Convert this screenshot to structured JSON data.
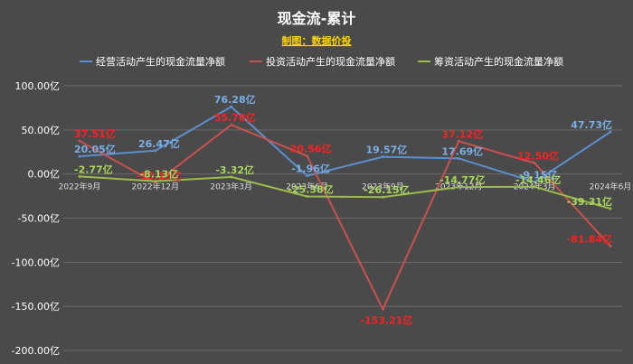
{
  "chart_data": {
    "type": "line",
    "title": "现金流-累计",
    "subtitle": "制图：数据价投",
    "xlabel": "",
    "ylabel": "",
    "ylim": [
      -200,
      100
    ],
    "yticks": [
      "100.00亿",
      "50.00亿",
      "0.00亿",
      "-50.00亿",
      "-100.00亿",
      "-150.00亿",
      "-200.00亿"
    ],
    "ytick_values": [
      100,
      50,
      0,
      -50,
      -100,
      -150,
      -200
    ],
    "categories": [
      "2022年9月",
      "2022年12月",
      "2023年3月",
      "2023年6月",
      "2023年9月",
      "2023年12月",
      "2024年3月",
      "2024年6月"
    ],
    "legend_position": "top",
    "grid": true,
    "series": [
      {
        "name": "经营活动产生的现金流量净额",
        "color": "#5b8fd0",
        "label_color": "#7aaee8",
        "values": [
          20.05,
          26.47,
          76.28,
          -1.96,
          19.57,
          17.69,
          -9.15,
          47.73
        ],
        "labels": [
          "20.05亿",
          "26.47亿",
          "76.28亿",
          "-1.96亿",
          "19.57亿",
          "17.69亿",
          "-9.15亿",
          "47.73亿"
        ]
      },
      {
        "name": "投资活动产生的现金流量净额",
        "color": "#c9504f",
        "label_color": "#ff2020",
        "values": [
          37.51,
          -10.13,
          55.78,
          20.56,
          -153.21,
          37.12,
          12.5,
          -81.84
        ],
        "labels": [
          "37.51亿",
          "-10.13亿",
          "55.78亿",
          "20.56亿",
          "-153.21亿",
          "37.12亿",
          "12.50亿",
          "-81.84亿"
        ]
      },
      {
        "name": "筹资活动产生的现金流量净额",
        "color": "#9bbb4c",
        "label_color": "#a8d85a",
        "values": [
          -2.77,
          -8.13,
          -3.32,
          -25.38,
          -26.15,
          -14.77,
          -14.46,
          -39.31
        ],
        "labels": [
          "-2.77亿",
          "-8.13亿",
          "-3.32亿",
          "-25.38亿",
          "-26.15亿",
          "-14.77亿",
          "-14.46亿",
          "-39.31亿"
        ]
      }
    ]
  }
}
